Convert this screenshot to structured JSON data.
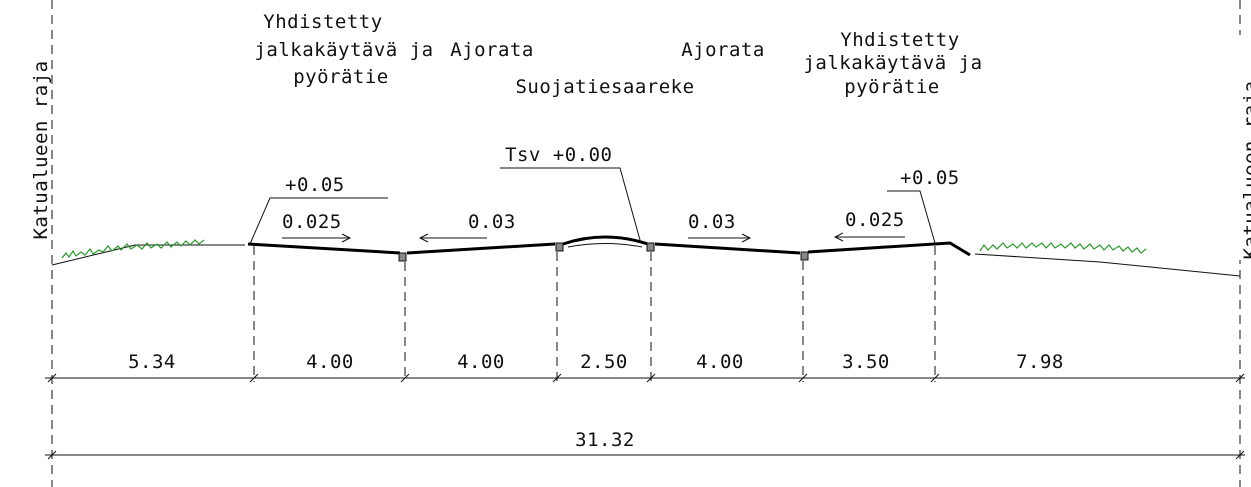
{
  "boundary_labels": [
    "Katualueen raja",
    "Katualueen raja"
  ],
  "zones": [
    {
      "lines": [
        "Yhdistetty",
        "jalkakäytävä ja",
        "pyörätie"
      ]
    },
    {
      "lines": [
        "Ajorata"
      ]
    },
    {
      "lines": [
        "Suojatiesaareke"
      ]
    },
    {
      "lines": [
        "Ajorata"
      ]
    },
    {
      "lines": [
        "Yhdistetty",
        "jalkakäytävä ja",
        "pyörätie"
      ]
    }
  ],
  "elevations": [
    "+0.05",
    "Tsv +0.00",
    "+0.05"
  ],
  "slopes": [
    "0.025",
    "0.03",
    "0.03",
    "0.025"
  ],
  "dimensions": [
    "5.34",
    "4.00",
    "4.00",
    "2.50",
    "4.00",
    "3.50",
    "7.98"
  ],
  "total_width": "31.32"
}
